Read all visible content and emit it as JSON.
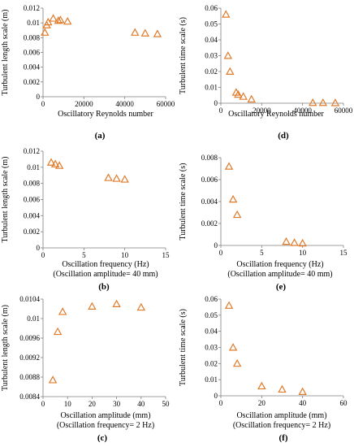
{
  "chart_data": [
    {
      "type": "scatter",
      "panel": "(a)",
      "xlabel": [
        "Oscillatory Reynolds number"
      ],
      "ylabel": "Turbulent length scale (m)",
      "xlim": [
        0,
        60000
      ],
      "ylim": [
        0,
        0.012
      ],
      "xticks": [
        "0",
        "20000",
        "40000",
        "60000"
      ],
      "yticks": [
        "0",
        "0.002",
        "0.004",
        "0.006",
        "0.008",
        "0.01",
        "0.012"
      ],
      "x": [
        900,
        1800,
        2500,
        5000,
        7500,
        8500,
        12000,
        45000,
        50000,
        56000
      ],
      "y": [
        0.0087,
        0.0097,
        0.0101,
        0.0106,
        0.0103,
        0.0104,
        0.0102,
        0.0087,
        0.0086,
        0.0085
      ]
    },
    {
      "type": "scatter",
      "panel": "(d)",
      "xlabel": [
        "Oscillatory Reynolds number"
      ],
      "ylabel": "Turbulent time scale (s)",
      "xlim": [
        0,
        60000
      ],
      "ylim": [
        0,
        0.06
      ],
      "xticks": [
        "0",
        "20000",
        "40000",
        "60000"
      ],
      "yticks": [
        "0",
        "0.01",
        "0.02",
        "0.03",
        "0.04",
        "0.05",
        "0.06"
      ],
      "x": [
        2500,
        3500,
        4500,
        7500,
        8500,
        11000,
        15000,
        45000,
        50000,
        56000
      ],
      "y": [
        0.056,
        0.03,
        0.02,
        0.0068,
        0.0055,
        0.0042,
        0.0025,
        0.0003,
        0.0003,
        0.0002
      ]
    },
    {
      "type": "scatter",
      "panel": "(b)",
      "xlabel": [
        "Oscillation frequency (Hz)",
        "(Oscillation amplitude= 40 mm)"
      ],
      "ylabel": "Turbulent length scale (m)",
      "xlim": [
        0,
        15
      ],
      "ylim": [
        0,
        0.012
      ],
      "xticks": [
        "0",
        "5",
        "10",
        "15"
      ],
      "yticks": [
        "0",
        "0.002",
        "0.004",
        "0.006",
        "0.008",
        "0.01",
        "0.012"
      ],
      "x": [
        1,
        1.5,
        2,
        8,
        9,
        10
      ],
      "y": [
        0.0106,
        0.0104,
        0.0102,
        0.0087,
        0.0086,
        0.0085
      ]
    },
    {
      "type": "scatter",
      "panel": "(e)",
      "xlabel": [
        "Oscillation frequency (Hz)",
        "(Oscillation amplitude= 40 mm)"
      ],
      "ylabel": "Turbulent time scale (s)",
      "xlim": [
        0,
        15
      ],
      "ylim": [
        0,
        0.008
      ],
      "xticks": [
        "0",
        "5",
        "10",
        "15"
      ],
      "yticks": [
        "0",
        "0.002",
        "0.004",
        "0.006",
        "0.008"
      ],
      "x": [
        1,
        1.5,
        2,
        8,
        9,
        10
      ],
      "y": [
        0.0072,
        0.0042,
        0.0028,
        0.00035,
        0.00025,
        0.0002
      ]
    },
    {
      "type": "scatter",
      "panel": "(c)",
      "xlabel": [
        "Oscillation amplitude (mm)",
        "(Oscillation frequency= 2 Hz)"
      ],
      "ylabel": "Turbulent length scale (m)",
      "xlim": [
        0,
        50
      ],
      "ylim": [
        0.0084,
        0.0104
      ],
      "xticks": [
        "0",
        "10",
        "20",
        "30",
        "40",
        "50"
      ],
      "yticks": [
        "0.0084",
        "0.0088",
        "0.0092",
        "0.0096",
        "0.01",
        "0.0104"
      ],
      "x": [
        4,
        6,
        8,
        20,
        30,
        40
      ],
      "y": [
        0.00874,
        0.00973,
        0.01014,
        0.01025,
        0.0103,
        0.01023
      ]
    },
    {
      "type": "scatter",
      "panel": "(f)",
      "xlabel": [
        "Oscillation amplitude (mm)",
        "(Oscillation frequency= 2 Hz)"
      ],
      "ylabel": "Turbulent time scale (s)",
      "xlim": [
        0,
        60
      ],
      "ylim": [
        0,
        0.06
      ],
      "xticks": [
        "0",
        "20",
        "40",
        "60"
      ],
      "yticks": [
        "0",
        "0.01",
        "0.02",
        "0.03",
        "0.04",
        "0.05",
        "0.06"
      ],
      "x": [
        4,
        6,
        8,
        20,
        30,
        40
      ],
      "y": [
        0.056,
        0.03,
        0.02,
        0.006,
        0.004,
        0.0025
      ]
    }
  ],
  "colors": {
    "marker": "#e07b2a",
    "axis": "#7f7f7f"
  }
}
